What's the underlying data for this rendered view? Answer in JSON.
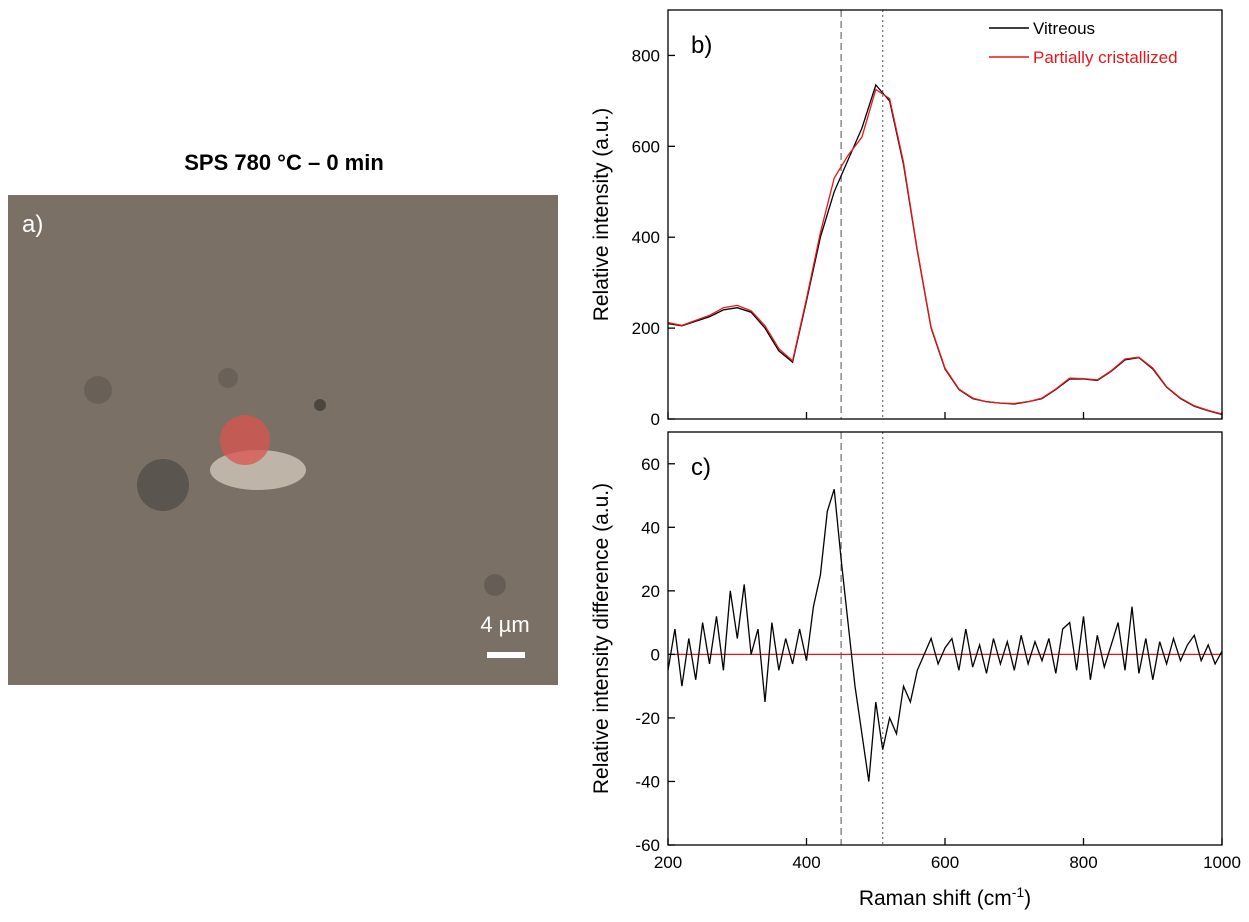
{
  "micrograph": {
    "title": "SPS 780 °C – 0 min",
    "label": "a)",
    "scale_bar": "4 µm"
  },
  "chart_data": [
    {
      "type": "line",
      "annotation": "b)",
      "y_label": "Relative intensity (a.u.)",
      "xlim": [
        200,
        1000
      ],
      "ylim": [
        0,
        900
      ],
      "yticks": [
        0,
        200,
        400,
        600,
        800
      ],
      "xticks": [
        200,
        400,
        600,
        800,
        1000
      ],
      "xtick_labels": false,
      "vlines": [
        {
          "x": 450,
          "style": "dashed"
        },
        {
          "x": 510,
          "style": "dotted"
        }
      ],
      "legend": "top-right",
      "x": [
        200,
        220,
        240,
        260,
        280,
        300,
        320,
        340,
        360,
        380,
        400,
        420,
        440,
        460,
        480,
        500,
        520,
        540,
        560,
        580,
        600,
        620,
        640,
        660,
        680,
        700,
        720,
        740,
        760,
        780,
        800,
        820,
        840,
        860,
        880,
        900,
        920,
        940,
        960,
        980,
        1000
      ],
      "series": [
        {
          "name": "Vitreous",
          "color": "#000000",
          "values": [
            210,
            205,
            215,
            225,
            240,
            245,
            235,
            200,
            150,
            125,
            260,
            400,
            500,
            570,
            640,
            735,
            700,
            560,
            370,
            200,
            110,
            65,
            45,
            38,
            35,
            33,
            38,
            45,
            65,
            88,
            88,
            85,
            105,
            130,
            135,
            110,
            70,
            45,
            28,
            18,
            10
          ]
        },
        {
          "name": "Partially cristallized",
          "color": "#e8161c",
          "values": [
            212,
            206,
            217,
            228,
            245,
            250,
            238,
            205,
            155,
            128,
            265,
            410,
            530,
            580,
            620,
            725,
            705,
            565,
            372,
            202,
            112,
            66,
            46,
            38,
            35,
            34,
            38,
            46,
            66,
            90,
            89,
            86,
            106,
            132,
            136,
            112,
            71,
            46,
            29,
            19,
            11
          ]
        }
      ]
    },
    {
      "type": "line",
      "annotation": "c)",
      "y_label": "Relative intensity difference (a.u.)",
      "x_label": [
        "Raman shift (cm",
        "-1",
        ")"
      ],
      "xlim": [
        200,
        1000
      ],
      "ylim": [
        -60,
        70
      ],
      "yticks": [
        -60,
        -40,
        -20,
        0,
        20,
        40,
        60
      ],
      "xticks": [
        200,
        400,
        600,
        800,
        1000
      ],
      "vlines": [
        {
          "x": 450,
          "style": "dashed"
        },
        {
          "x": 510,
          "style": "dotted"
        }
      ],
      "hline": {
        "y": 0,
        "color": "#e8161c"
      },
      "x": [
        200,
        210,
        220,
        230,
        240,
        250,
        260,
        270,
        280,
        290,
        300,
        310,
        320,
        330,
        340,
        350,
        360,
        370,
        380,
        390,
        400,
        410,
        420,
        430,
        440,
        450,
        460,
        470,
        480,
        490,
        500,
        510,
        520,
        530,
        540,
        550,
        560,
        570,
        580,
        590,
        600,
        610,
        620,
        630,
        640,
        650,
        660,
        670,
        680,
        690,
        700,
        710,
        720,
        730,
        740,
        750,
        760,
        770,
        780,
        790,
        800,
        810,
        820,
        830,
        840,
        850,
        860,
        870,
        880,
        890,
        900,
        910,
        920,
        930,
        940,
        950,
        960,
        970,
        980,
        990,
        1000
      ],
      "series": [
        {
          "color": "#000000",
          "values": [
            -5,
            8,
            -10,
            5,
            -8,
            10,
            -3,
            12,
            -5,
            20,
            5,
            22,
            0,
            8,
            -15,
            10,
            -5,
            5,
            -3,
            8,
            -2,
            15,
            25,
            45,
            52,
            30,
            10,
            -10,
            -25,
            -40,
            -15,
            -30,
            -20,
            -25,
            -10,
            -15,
            -5,
            0,
            5,
            -3,
            2,
            5,
            -5,
            8,
            -4,
            3,
            -6,
            5,
            -3,
            4,
            -5,
            6,
            -3,
            4,
            -2,
            5,
            -6,
            8,
            10,
            -5,
            12,
            -8,
            6,
            -4,
            3,
            10,
            -5,
            15,
            -6,
            5,
            -8,
            4,
            -3,
            5,
            -2,
            3,
            6,
            -2,
            3,
            -3,
            1
          ]
        }
      ]
    }
  ]
}
